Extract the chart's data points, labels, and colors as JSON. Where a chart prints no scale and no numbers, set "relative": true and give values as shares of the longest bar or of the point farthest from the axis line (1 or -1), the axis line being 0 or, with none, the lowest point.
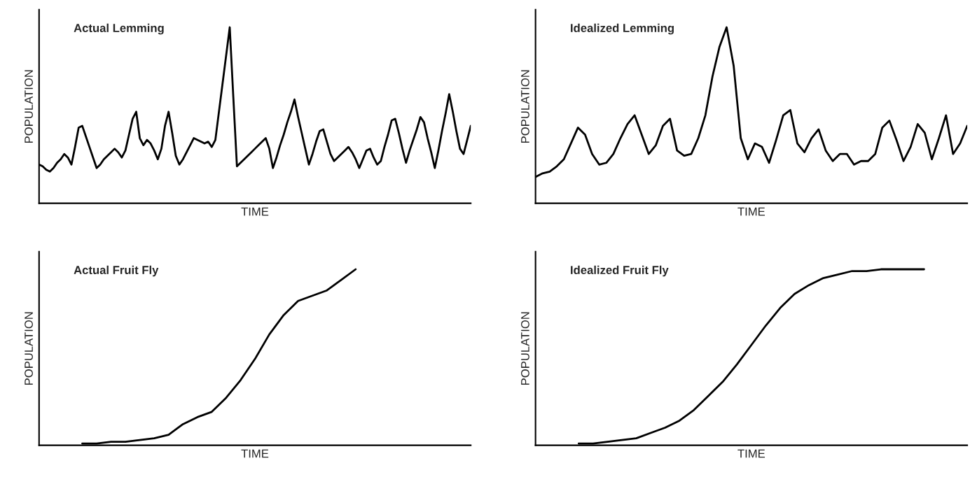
{
  "chart_data": [
    {
      "type": "line",
      "title": "Actual Lemming",
      "xlabel": "TIME",
      "ylabel": "POPULATION",
      "relative": true,
      "tick_labels": false,
      "color": "#000000",
      "categories": [
        null,
        null,
        null,
        null,
        null,
        null,
        null,
        null,
        null,
        null,
        null,
        null,
        null,
        null,
        null,
        null,
        null,
        null,
        null,
        null,
        null,
        null,
        null,
        null,
        null,
        null,
        null,
        null,
        null,
        null,
        null,
        null,
        null,
        null,
        null,
        null,
        null,
        null,
        null,
        null,
        null,
        null,
        null,
        null,
        null,
        null,
        null,
        null,
        null,
        null,
        null,
        null,
        null,
        null,
        null,
        null,
        null,
        null,
        null,
        null,
        null,
        null,
        null,
        null,
        null,
        null,
        null,
        null,
        null,
        null,
        null,
        null,
        null,
        null,
        null,
        null,
        null,
        null,
        null,
        null,
        null,
        null,
        null,
        null,
        null,
        null,
        null,
        null,
        null,
        null,
        null,
        null,
        null,
        null,
        null,
        null,
        null,
        null,
        null,
        null,
        null,
        null,
        null,
        null,
        null,
        null,
        null,
        null,
        null,
        null,
        null,
        null,
        null,
        null,
        null,
        null,
        null,
        null,
        null,
        null,
        null
      ],
      "values": [
        0.22,
        0.21,
        0.19,
        0.18,
        0.2,
        0.23,
        0.25,
        0.28,
        0.26,
        0.22,
        0.32,
        0.43,
        0.44,
        0.38,
        0.32,
        0.26,
        0.2,
        0.22,
        0.25,
        0.27,
        0.29,
        0.31,
        0.29,
        0.26,
        0.3,
        0.39,
        0.48,
        0.52,
        0.37,
        0.33,
        0.36,
        0.34,
        0.3,
        0.25,
        0.31,
        0.44,
        0.52,
        0.4,
        0.27,
        0.22,
        0.25,
        0.29,
        0.33,
        0.37,
        0.36,
        0.35,
        0.34,
        0.35,
        0.32,
        0.36,
        0.52,
        0.68,
        0.84,
        1.0,
        0.6,
        0.21,
        0.23,
        0.25,
        0.27,
        0.29,
        0.31,
        0.33,
        0.35,
        0.37,
        0.31,
        0.2,
        0.26,
        0.33,
        0.39,
        0.46,
        0.52,
        0.59,
        0.49,
        0.4,
        0.31,
        0.22,
        0.28,
        0.35,
        0.41,
        0.42,
        0.35,
        0.28,
        0.24,
        0.26,
        0.28,
        0.3,
        0.32,
        0.29,
        0.25,
        0.2,
        0.25,
        0.3,
        0.31,
        0.26,
        0.22,
        0.24,
        0.32,
        0.39,
        0.47,
        0.48,
        0.4,
        0.31,
        0.23,
        0.3,
        0.36,
        0.42,
        0.49,
        0.46,
        0.37,
        0.29,
        0.2,
        0.3,
        0.41,
        0.51,
        0.62,
        0.52,
        0.41,
        0.31,
        0.28,
        0.36,
        0.44
      ]
    },
    {
      "type": "line",
      "title": "Idealized Lemming",
      "xlabel": "TIME",
      "ylabel": "POPULATION",
      "relative": true,
      "tick_labels": false,
      "color": "#000000",
      "categories": [
        null,
        null,
        null,
        null,
        null,
        null,
        null,
        null,
        null,
        null,
        null,
        null,
        null,
        null,
        null,
        null,
        null,
        null,
        null,
        null,
        null,
        null,
        null,
        null,
        null,
        null,
        null,
        null,
        null,
        null,
        null,
        null,
        null,
        null,
        null,
        null,
        null,
        null,
        null,
        null,
        null,
        null,
        null,
        null,
        null,
        null,
        null,
        null,
        null,
        null,
        null,
        null,
        null,
        null,
        null,
        null,
        null,
        null,
        null,
        null,
        null,
        null
      ],
      "values": [
        0.15,
        0.17,
        0.18,
        0.21,
        0.25,
        0.34,
        0.43,
        0.39,
        0.28,
        0.22,
        0.23,
        0.28,
        0.37,
        0.45,
        0.5,
        0.39,
        0.28,
        0.33,
        0.44,
        0.48,
        0.3,
        0.27,
        0.28,
        0.37,
        0.5,
        0.72,
        0.89,
        1.0,
        0.78,
        0.37,
        0.25,
        0.34,
        0.32,
        0.23,
        0.36,
        0.5,
        0.53,
        0.34,
        0.29,
        0.37,
        0.42,
        0.3,
        0.24,
        0.28,
        0.28,
        0.22,
        0.24,
        0.24,
        0.28,
        0.43,
        0.47,
        0.36,
        0.24,
        0.32,
        0.45,
        0.4,
        0.25,
        0.37,
        0.5,
        0.28,
        0.34,
        0.44
      ]
    },
    {
      "type": "line",
      "title": "Actual Fruit Fly",
      "xlabel": "TIME",
      "ylabel": "POPULATION",
      "relative": true,
      "tick_labels": false,
      "color": "#000000",
      "categories": [
        null,
        null,
        null,
        null,
        null,
        null,
        null,
        null,
        null,
        null,
        null,
        null,
        null,
        null,
        null,
        null,
        null,
        null,
        null,
        null,
        null,
        null,
        null,
        null,
        null,
        null,
        null,
        null,
        null,
        null,
        null
      ],
      "values": [
        null,
        null,
        null,
        0.01,
        0.01,
        0.02,
        0.02,
        0.03,
        0.04,
        0.06,
        0.12,
        0.16,
        0.19,
        0.27,
        0.37,
        0.49,
        0.63,
        0.74,
        0.82,
        0.85,
        0.88,
        0.94,
        1.0,
        null,
        null,
        null,
        null,
        null,
        null,
        null,
        null
      ]
    },
    {
      "type": "line",
      "title": "Idealized Fruit Fly",
      "xlabel": "TIME",
      "ylabel": "POPULATION",
      "relative": true,
      "tick_labels": false,
      "color": "#000000",
      "categories": [
        null,
        null,
        null,
        null,
        null,
        null,
        null,
        null,
        null,
        null,
        null,
        null,
        null,
        null,
        null,
        null,
        null,
        null,
        null,
        null,
        null,
        null,
        null,
        null,
        null,
        null,
        null,
        null,
        null,
        null,
        null
      ],
      "values": [
        null,
        null,
        null,
        0.01,
        0.01,
        0.02,
        0.03,
        0.04,
        0.07,
        0.1,
        0.14,
        0.2,
        0.28,
        0.36,
        0.46,
        0.57,
        0.68,
        0.78,
        0.86,
        0.91,
        0.95,
        0.97,
        0.99,
        0.99,
        1.0,
        1.0,
        1.0,
        1.0,
        null,
        null,
        null
      ]
    }
  ]
}
